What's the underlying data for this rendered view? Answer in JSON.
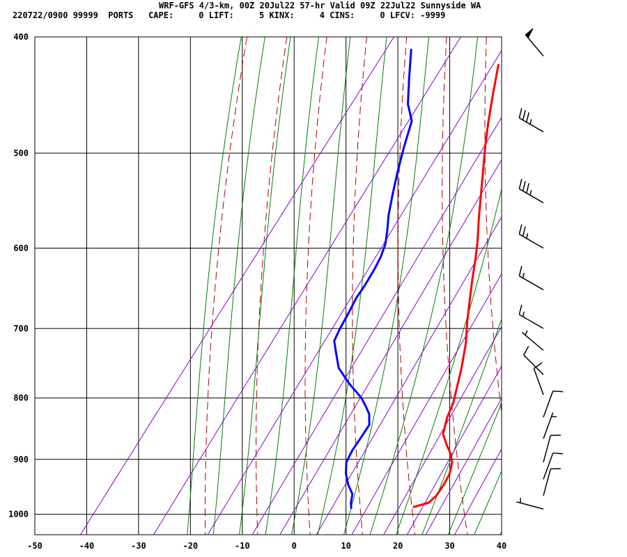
{
  "header": {
    "line1": "WRF-GFS 4/3-km, 00Z 20Jul22 57-hr Valid 09Z 22Jul22 Sunnyside WA",
    "line2": "220722/0900 99999  PORTS   CAPE:     0 LIFT:     5 KINX:     4 CINS:     0 LFCV: -9999"
  },
  "colors": {
    "temperature": "#ff0000",
    "dewpoint": "#0000ff",
    "dry_adiabat": "#aa0000",
    "moist_adiabat": "#008000",
    "mixing_ratio": "#8800cc",
    "grid": "#000000"
  },
  "chart_data": {
    "type": "line",
    "title": "",
    "xlabel": "",
    "ylabel": "",
    "xlim": [
      -50,
      40
    ],
    "ylim": [
      1040,
      400
    ],
    "y_scale": "log-pressure",
    "x_ticks": [
      "-50",
      "-40",
      "-30",
      "-20",
      "-10",
      "0",
      "10",
      "20",
      "30",
      "40"
    ],
    "y_ticks": [
      "400",
      "500",
      "600",
      "700",
      "800",
      "900",
      "1000"
    ],
    "grid": true,
    "series": [
      {
        "key": "temperature",
        "x": [
          19.2,
          21.5,
          22.0,
          21.9,
          21.5,
          20.4,
          18.9,
          16.9,
          14.7,
          13.2,
          12.4,
          11.3,
          9.1,
          6.5,
          3.7,
          1.0,
          -1.3,
          -3.4,
          -5.3,
          -8.3,
          -11.4,
          -14.4,
          -17.3,
          -20.0,
          -22.8,
          -25.9
        ],
        "y": [
          986,
          978,
          965,
          945,
          925,
          905,
          890,
          875,
          857,
          830,
          808,
          790,
          755,
          720,
          690,
          660,
          635,
          612,
          593,
          567,
          540,
          515,
          492,
          470,
          447,
          422
        ]
      },
      {
        "key": "dewpoint",
        "x": [
          7.3,
          6.5,
          5.6,
          3.5,
          1.5,
          0.0,
          -0.5,
          -0.6,
          -0.7,
          -0.8,
          -2.3,
          -3.7,
          -6.0,
          -10.4,
          -14.6,
          -16.4,
          -19.2,
          -19.8,
          -20.3,
          -20.9,
          -21.0,
          -21.4,
          -21.9,
          -22.8,
          -24.3,
          -26.2,
          -28.4,
          -30.3,
          -32.6,
          -34.8,
          -37.9,
          -41.4,
          -44.8
        ],
        "y": [
          988,
          978,
          962,
          945,
          925,
          905,
          885,
          865,
          850,
          842,
          825,
          815,
          800,
          778,
          755,
          740,
          717,
          700,
          680,
          660,
          645,
          625,
          610,
          595,
          580,
          563,
          540,
          520,
          495,
          470,
          455,
          432,
          410
        ]
      }
    ],
    "wind_barbs": [
      {
        "p": 415,
        "dir": 320,
        "spd": 50
      },
      {
        "p": 480,
        "dir": 300,
        "spd": 35
      },
      {
        "p": 550,
        "dir": 300,
        "spd": 35
      },
      {
        "p": 600,
        "dir": 300,
        "spd": 25
      },
      {
        "p": 650,
        "dir": 300,
        "spd": 15
      },
      {
        "p": 700,
        "dir": 300,
        "spd": 15
      },
      {
        "p": 730,
        "dir": 310,
        "spd": 5
      },
      {
        "p": 765,
        "dir": 315,
        "spd": 10
      },
      {
        "p": 795,
        "dir": 340,
        "spd": 10
      },
      {
        "p": 830,
        "dir": 20,
        "spd": 10
      },
      {
        "p": 865,
        "dir": 20,
        "spd": 5
      },
      {
        "p": 905,
        "dir": 15,
        "spd": 10
      },
      {
        "p": 935,
        "dir": 20,
        "spd": 10
      },
      {
        "p": 965,
        "dir": 15,
        "spd": 10
      },
      {
        "p": 990,
        "dir": 285,
        "spd": 5
      }
    ]
  }
}
